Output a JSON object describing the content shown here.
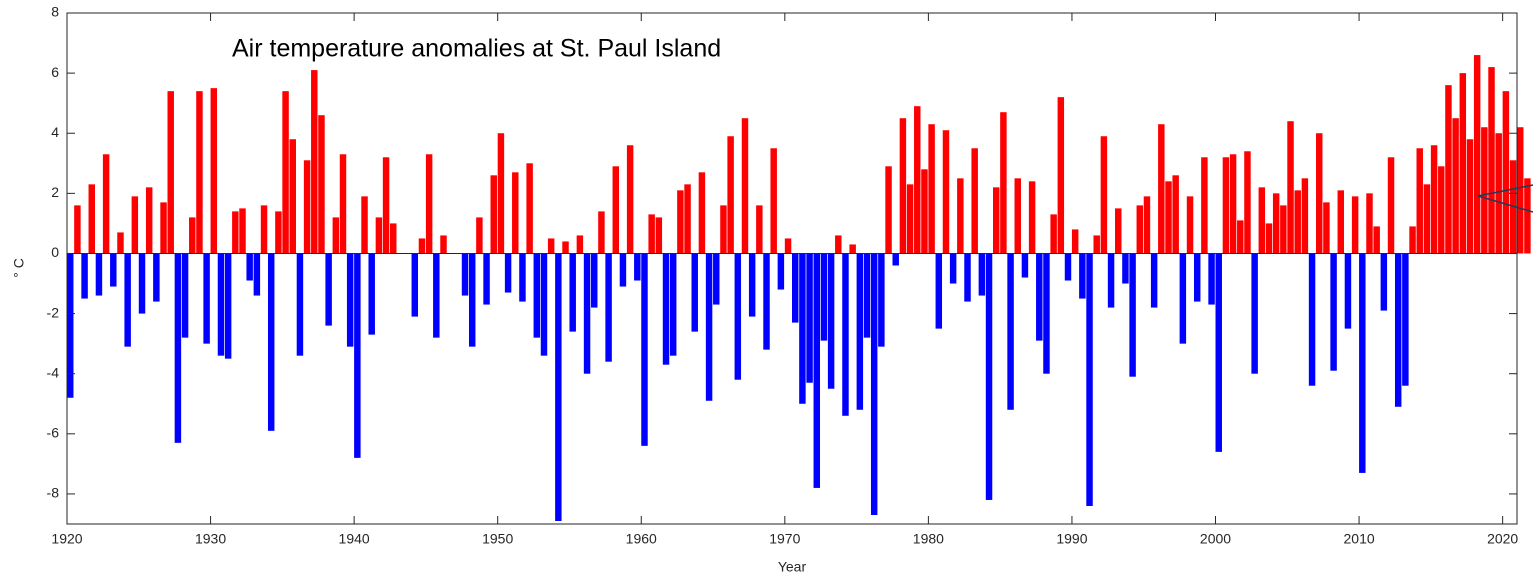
{
  "chart_data": {
    "type": "bar",
    "title": "Air temperature anomalies at St. Paul Island",
    "xlabel": "Year",
    "ylabel": "° C",
    "xlim": [
      1920,
      2021
    ],
    "ylim": [
      -9,
      8
    ],
    "xticks": [
      1920,
      1930,
      1940,
      1950,
      1960,
      1970,
      1980,
      1990,
      2000,
      2010,
      2020
    ],
    "yticks": [
      -8,
      -6,
      -4,
      -2,
      0,
      2,
      4,
      6,
      8
    ],
    "positive_color": "#ff0000",
    "negative_color": "#0000ff",
    "x": [
      1920,
      1920.5,
      1921,
      1921.5,
      1922,
      1922.5,
      1923,
      1923.5,
      1924,
      1924.5,
      1925,
      1925.5,
      1926,
      1926.5,
      1927,
      1927.5,
      1928,
      1928.5,
      1929,
      1929.5,
      1930,
      1930.5,
      1931,
      1931.5,
      1932,
      1932.5,
      1933,
      1933.5,
      1934,
      1934.5,
      1935,
      1935.5,
      1936,
      1936.5,
      1937,
      1937.5,
      1938,
      1938.5,
      1939,
      1939.5,
      1940,
      1940.5,
      1941,
      1941.5,
      1942,
      1942.5,
      1943,
      1943.5,
      1944,
      1944.5,
      1945,
      1945.5,
      1946,
      1946.5,
      1947,
      1947.5,
      1948,
      1948.5,
      1949,
      1949.5,
      1950,
      1950.5,
      1951,
      1951.5,
      1952,
      1952.5,
      1953,
      1953.5,
      1954,
      1954.5,
      1955,
      1955.5,
      1956,
      1956.5,
      1957,
      1957.5,
      1958,
      1958.5,
      1959,
      1959.5,
      1960,
      1960.5,
      1961,
      1961.5,
      1962,
      1962.5,
      1963,
      1963.5,
      1964,
      1964.5,
      1965,
      1965.5,
      1966,
      1966.5,
      1967,
      1967.5,
      1968,
      1968.5,
      1969,
      1969.5,
      1970,
      1970.5,
      1971,
      1971.5,
      1972,
      1972.5,
      1973,
      1973.5,
      1974,
      1974.5,
      1975,
      1975.5,
      1976,
      1976.5,
      1977,
      1977.5,
      1978,
      1978.5,
      1979,
      1979.5,
      1980,
      1980.5,
      1981,
      1981.5,
      1982,
      1982.5,
      1983,
      1983.5,
      1984,
      1984.5,
      1985,
      1985.5,
      1986,
      1986.5,
      1987,
      1987.5,
      1988,
      1988.5,
      1989,
      1989.5,
      1990,
      1990.5,
      1991,
      1991.5,
      1992,
      1992.5,
      1993,
      1993.5,
      1994,
      1994.5,
      1995,
      1995.5,
      1996,
      1996.5,
      1997,
      1997.5,
      1998,
      1998.5,
      1999,
      1999.5,
      2000,
      2000.5,
      2001,
      2001.5,
      2002,
      2002.5,
      2003,
      2003.5,
      2004,
      2004.5,
      2005,
      2005.5,
      2006,
      2006.5,
      2007,
      2007.5,
      2008,
      2008.5,
      2009,
      2009.5,
      2010,
      2010.5,
      2011,
      2011.5,
      2012,
      2012.5,
      2013,
      2013.5,
      2014,
      2014.5,
      2015,
      2015.5,
      2016,
      2016.5,
      2017,
      2017.5,
      2018,
      2018.5,
      2019,
      2019.5,
      2020,
      2020.5,
      2021,
      2021.5
    ],
    "values": [
      -4.8,
      1.6,
      -1.5,
      2.3,
      -1.4,
      3.3,
      -1.1,
      0.7,
      -3.1,
      1.9,
      -2.0,
      2.2,
      -1.6,
      1.7,
      5.4,
      -6.3,
      -2.8,
      1.2,
      5.4,
      -3.0,
      5.5,
      -3.4,
      -3.5,
      1.4,
      1.5,
      -0.9,
      -1.4,
      1.6,
      -5.9,
      1.4,
      5.4,
      3.8,
      -3.4,
      3.1,
      6.1,
      4.6,
      -2.4,
      1.2,
      3.3,
      -3.1,
      -6.8,
      1.9,
      -2.7,
      1.2,
      3.2,
      1.0,
      null,
      null,
      -2.1,
      0.5,
      3.3,
      -2.8,
      0.6,
      null,
      null,
      -1.4,
      -3.1,
      1.2,
      -1.7,
      2.6,
      4.0,
      -1.3,
      2.7,
      -1.6,
      3.0,
      -2.8,
      -3.4,
      0.5,
      -8.9,
      0.4,
      -2.6,
      0.6,
      -4.0,
      -1.8,
      1.4,
      -3.6,
      2.9,
      -1.1,
      3.6,
      -0.9,
      -6.4,
      1.3,
      1.2,
      -3.7,
      -3.4,
      2.1,
      2.3,
      -2.6,
      2.7,
      -4.9,
      -1.7,
      1.6,
      3.9,
      -4.2,
      4.5,
      -2.1,
      1.6,
      -3.2,
      3.5,
      -1.2,
      0.5,
      -2.3,
      -5.0,
      -4.3,
      -7.8,
      -2.9,
      -4.5,
      0.6,
      -5.4,
      0.3,
      -5.2,
      -2.8,
      -8.7,
      -3.1,
      2.9,
      -0.4,
      4.5,
      2.3,
      4.9,
      2.8,
      4.3,
      -2.5,
      4.1,
      -1.0,
      2.5,
      -1.6,
      3.5,
      -1.4,
      -8.2,
      2.2,
      4.7,
      -5.2,
      2.5,
      -0.8,
      2.4,
      -2.9,
      -4.0,
      1.3,
      5.2,
      -0.9,
      0.8,
      -1.5,
      -8.4,
      0.6,
      3.9,
      -1.8,
      1.5,
      -1.0,
      -4.1,
      1.6,
      1.9,
      -1.8,
      4.3,
      2.4,
      2.6,
      -3.0,
      1.9,
      -1.6,
      3.2,
      -1.7,
      -6.6,
      3.2,
      3.3,
      1.1,
      3.4,
      -4.0,
      2.2,
      1.0,
      2.0,
      1.6,
      4.4,
      2.1,
      2.5,
      -4.4,
      4.0,
      1.7,
      -3.9,
      2.1,
      -2.5,
      1.9,
      -7.3,
      2.0,
      0.9,
      -1.9,
      3.2,
      -5.1,
      -4.4,
      0.9,
      3.5,
      2.3,
      3.6,
      2.9,
      5.6,
      4.5,
      6.0,
      3.8,
      6.6,
      4.2,
      6.2,
      4.0,
      5.4,
      3.1,
      4.2,
      2.5
    ]
  }
}
